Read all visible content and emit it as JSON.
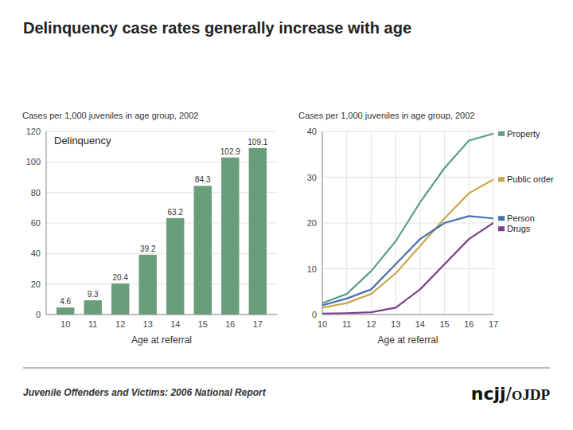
{
  "title": "Delinquency case rates generally increase with age",
  "footer": "Juvenile Offenders and Victims: 2006 National Report",
  "annotations": [
    "ncjj",
    "/",
    "O",
    "JDP"
  ],
  "chart_data": [
    {
      "type": "bar",
      "subtitle": "Cases per 1,000 juveniles in age group, 2002",
      "xlabel": "Age at referral",
      "annotations": [
        "Delinquency"
      ],
      "x": [
        10,
        11,
        12,
        13,
        14,
        15,
        16,
        17
      ],
      "values": [
        4.6,
        9.3,
        20.4,
        39.2,
        63.2,
        84.3,
        102.9,
        109.1
      ],
      "color": "#6A9E7A",
      "xlim": [
        9.3,
        17.7
      ],
      "xticks": [
        10,
        11,
        12,
        13,
        14,
        15,
        16,
        17
      ],
      "ylim": [
        0,
        120
      ],
      "yticks": [
        0,
        20,
        40,
        60,
        80,
        100,
        120
      ],
      "grid": "y",
      "data_labels": true
    },
    {
      "type": "line",
      "subtitle": "Cases per 1,000 juveniles in age group, 2002",
      "xlabel": "Age at referral",
      "x": [
        10,
        11,
        12,
        13,
        14,
        15,
        16,
        17
      ],
      "series": [
        {
          "name": "Property",
          "color": "#5A9E8A",
          "values": [
            2.5,
            4.5,
            9.5,
            16.0,
            24.5,
            32.0,
            38.0,
            39.5
          ]
        },
        {
          "name": "Public order",
          "color": "#C8A84B",
          "values": [
            1.5,
            2.5,
            4.5,
            9.0,
            15.0,
            21.0,
            26.5,
            29.5
          ]
        },
        {
          "name": "Person",
          "color": "#4A70A8",
          "values": [
            2.0,
            3.5,
            5.5,
            11.0,
            16.5,
            20.0,
            21.5,
            21.0
          ]
        },
        {
          "name": "Drugs",
          "color": "#7B3F8A",
          "values": [
            0.2,
            0.3,
            0.5,
            1.5,
            5.5,
            11.0,
            16.5,
            20.0
          ]
        }
      ],
      "xlim": [
        10,
        17
      ],
      "xticks": [
        10,
        11,
        12,
        13,
        14,
        15,
        16,
        17
      ],
      "ylim": [
        0,
        40
      ],
      "yticks": [
        0,
        10,
        20,
        30,
        40
      ],
      "grid": true
    }
  ]
}
